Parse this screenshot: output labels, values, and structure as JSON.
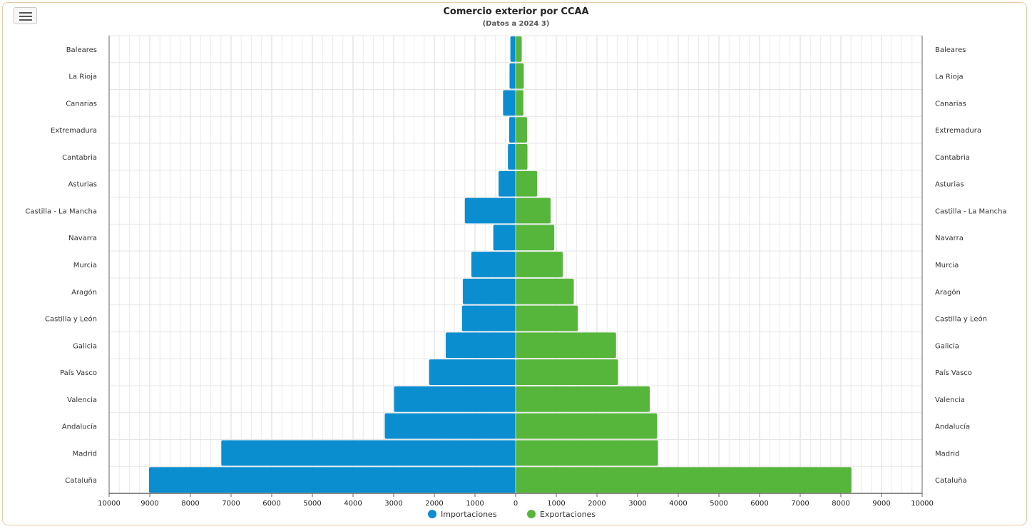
{
  "title": "Comercio exterior por CCAA",
  "subtitle": "(Datos a 2024 3)",
  "colors": {
    "importaciones": "#0a8ed0",
    "exportaciones": "#56b63b"
  },
  "chart_data": {
    "type": "bar",
    "orientation": "horizontal-diverging",
    "categories": [
      "Baleares",
      "La Rioja",
      "Canarias",
      "Extremadura",
      "Cantabria",
      "Asturias",
      "Castilla - La Mancha",
      "Navarra",
      "Murcia",
      "Aragón",
      "Castilla y León",
      "Galicia",
      "País Vasco",
      "Valencia",
      "Andalucía",
      "Madrid",
      "Cataluña"
    ],
    "series": [
      {
        "name": "Importaciones",
        "values": [
          130,
          150,
          310,
          160,
          190,
          420,
          1250,
          550,
          1090,
          1300,
          1320,
          1720,
          2130,
          2990,
          3220,
          7240,
          9020
        ]
      },
      {
        "name": "Exportaciones",
        "values": [
          150,
          200,
          190,
          280,
          290,
          530,
          860,
          950,
          1160,
          1430,
          1530,
          2470,
          2520,
          3300,
          3480,
          3500,
          8260
        ]
      }
    ],
    "xlim": [
      -10000,
      10000
    ],
    "xticks": [
      "10000",
      "9000",
      "8000",
      "7000",
      "6000",
      "5000",
      "4000",
      "3000",
      "2000",
      "1000",
      "0",
      "1000",
      "2000",
      "3000",
      "4000",
      "5000",
      "6000",
      "7000",
      "8000",
      "9000",
      "10000"
    ],
    "grid": true,
    "legend": "bottom"
  }
}
